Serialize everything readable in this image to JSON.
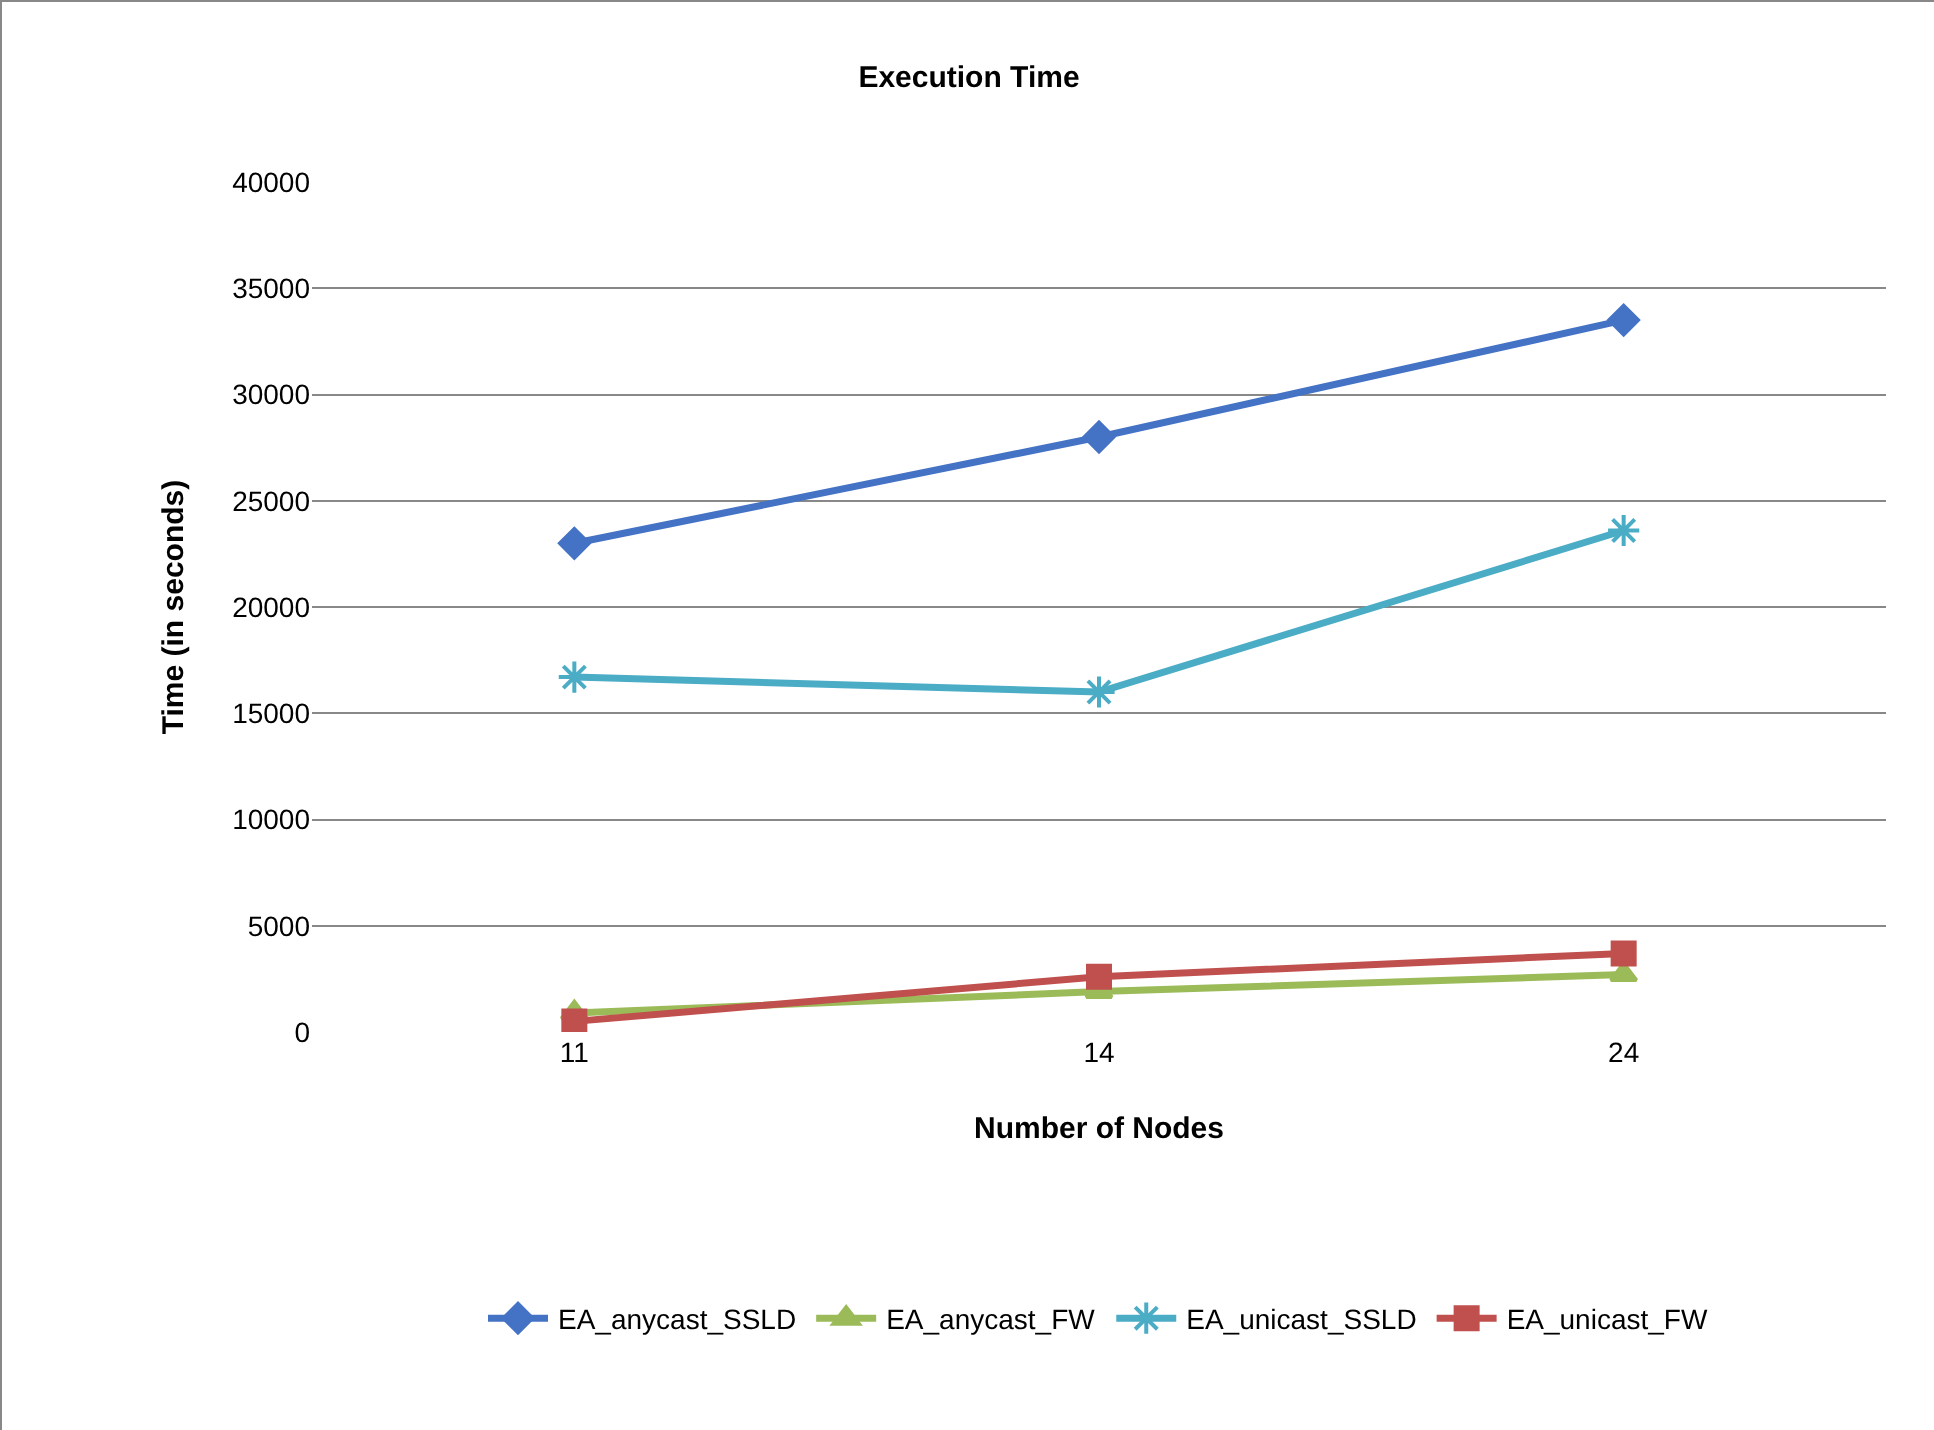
{
  "chart_data": {
    "type": "line",
    "title": "Execution Time",
    "xlabel": "Number of Nodes",
    "ylabel": "Time (in seconds)",
    "categories": [
      "11",
      "14",
      "24"
    ],
    "series": [
      {
        "name": "EA_anycast_SSLD",
        "color": "#4472c4",
        "marker": "diamond",
        "values": [
          23000,
          28000,
          33500
        ]
      },
      {
        "name": "EA_anycast_FW",
        "color": "#9bbb59",
        "marker": "triangle",
        "values": [
          900,
          1900,
          2700
        ]
      },
      {
        "name": "EA_unicast_SSLD",
        "color": "#4bacc6",
        "marker": "cross",
        "values": [
          16700,
          16000,
          23600
        ]
      },
      {
        "name": "EA_unicast_FW",
        "color": "#c0504d",
        "marker": "square",
        "values": [
          500,
          2600,
          3700
        ]
      }
    ],
    "ylim": [
      0,
      40000
    ],
    "yticks": [
      0,
      5000,
      10000,
      15000,
      20000,
      25000,
      30000,
      35000,
      40000
    ],
    "grid": "y",
    "legend": "bottom",
    "line_style": "solid"
  }
}
